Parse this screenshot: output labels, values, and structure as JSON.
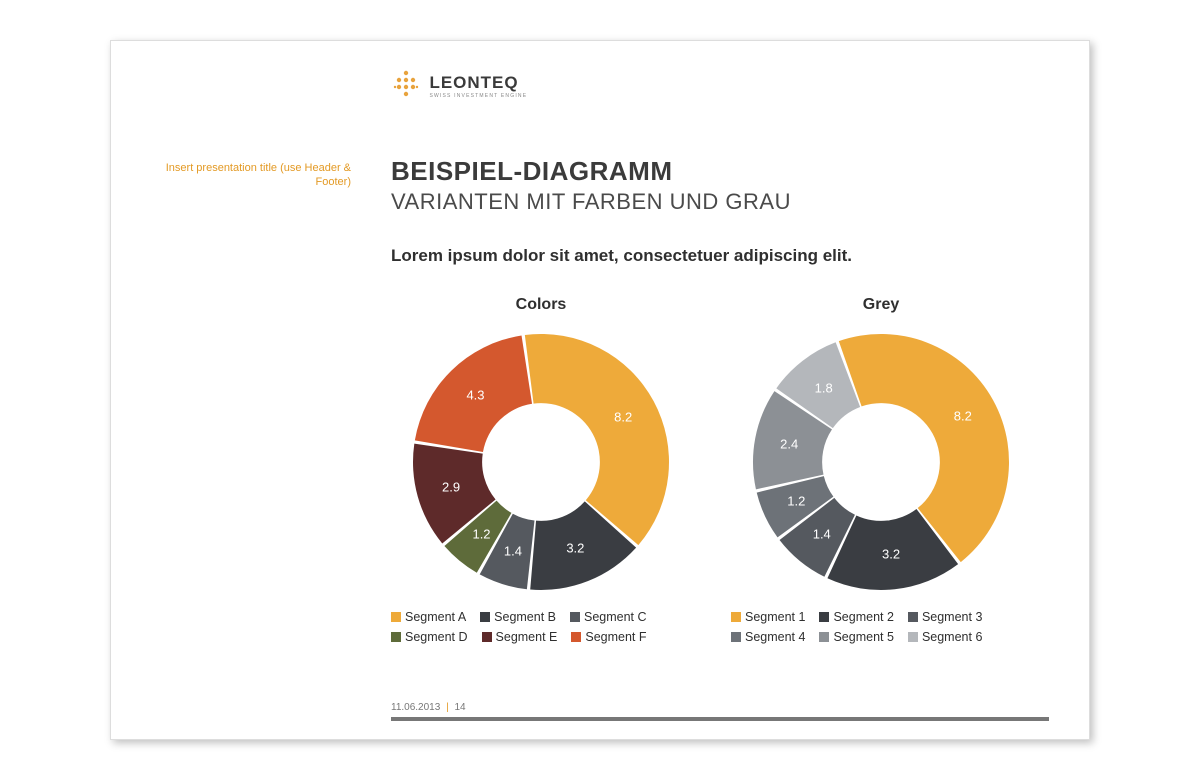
{
  "logo": {
    "name": "LEONTEQ",
    "tagline": "SWISS INVESTMENT ENGINE",
    "icon_color": "#e8a33d",
    "text_color": "#3a3a3a"
  },
  "sidebar_hint": "Insert presentation title (use Header & Footer)",
  "title_main": "BEISPIEL-DIAGRAMM",
  "title_sub": "VARIANTEN MIT FARBEN UND GRAU",
  "body_text": "Lorem ipsum dolor sit amet, consectetuer adipiscing elit.",
  "footer": {
    "date": "11.06.2013",
    "page": "14"
  },
  "chart_colors": {
    "type": "donut",
    "title": "Colors",
    "inner_radius_ratio": 0.46,
    "start_angle_deg": -8,
    "gap_deg": 1.5,
    "background_color": "#ffffff",
    "label_color": "#ffffff",
    "label_fontsize": 13,
    "title_fontsize": 16,
    "segments": [
      {
        "label": "Segment A",
        "value": 8.2,
        "color": "#eeaa3a"
      },
      {
        "label": "Segment B",
        "value": 3.2,
        "color": "#3a3d42"
      },
      {
        "label": "Segment C",
        "value": 1.4,
        "color": "#55595f"
      },
      {
        "label": "Segment D",
        "value": 1.2,
        "color": "#5e6b3a"
      },
      {
        "label": "Segment E",
        "value": 2.9,
        "color": "#5e2a2a"
      },
      {
        "label": "Segment F",
        "value": 4.3,
        "color": "#d4582e"
      }
    ]
  },
  "chart_grey": {
    "type": "donut",
    "title": "Grey",
    "inner_radius_ratio": 0.46,
    "start_angle_deg": -20,
    "gap_deg": 1.5,
    "background_color": "#ffffff",
    "label_color": "#ffffff",
    "label_fontsize": 13,
    "title_fontsize": 16,
    "segments": [
      {
        "label": "Segment 1",
        "value": 8.2,
        "color": "#eeaa3a"
      },
      {
        "label": "Segment 2",
        "value": 3.2,
        "color": "#3a3d42"
      },
      {
        "label": "Segment 3",
        "value": 1.4,
        "color": "#55595f"
      },
      {
        "label": "Segment 4",
        "value": 1.2,
        "color": "#6d7278"
      },
      {
        "label": "Segment 5",
        "value": 2.4,
        "color": "#8c9095"
      },
      {
        "label": "Segment 6",
        "value": 1.8,
        "color": "#b4b7bb"
      }
    ]
  }
}
